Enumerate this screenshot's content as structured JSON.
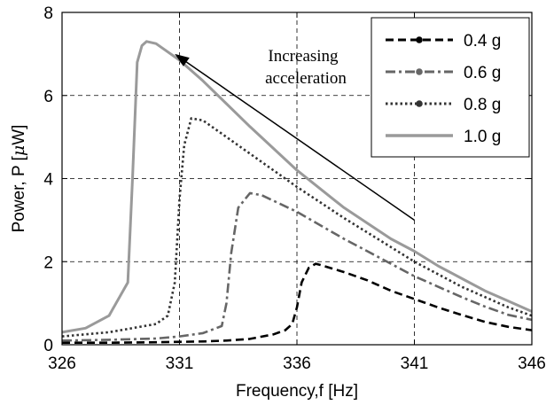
{
  "chart_data": {
    "type": "line",
    "title": "",
    "xlabel": "Frequency,f [Hz]",
    "ylabel_parts": [
      "Power, P [",
      "μ",
      "W]"
    ],
    "xlim": [
      326,
      346
    ],
    "ylim": [
      0,
      8
    ],
    "xticks": [
      326,
      331,
      336,
      341,
      346
    ],
    "yticks": [
      0,
      2,
      4,
      6,
      8
    ],
    "grid": true,
    "legend": "top-right",
    "annotation": {
      "lines": [
        "Increasing",
        "acceleration"
      ],
      "arrow_from": [
        341.0,
        3.0
      ],
      "arrow_to": [
        330.8,
        7.0
      ]
    },
    "series": [
      {
        "name": "0.4 g",
        "color": "#000000",
        "style": "dashed",
        "x": [
          326,
          328,
          330,
          332,
          333,
          334,
          335,
          335.5,
          335.8,
          336.0,
          336.2,
          336.5,
          336.8,
          337,
          338,
          339,
          340,
          341,
          342,
          343,
          344,
          345,
          346
        ],
        "y": [
          0.05,
          0.05,
          0.06,
          0.08,
          0.1,
          0.14,
          0.25,
          0.35,
          0.5,
          0.9,
          1.5,
          1.85,
          1.95,
          1.92,
          1.75,
          1.55,
          1.3,
          1.1,
          0.9,
          0.72,
          0.55,
          0.43,
          0.35
        ]
      },
      {
        "name": "0.6 g",
        "color": "#666666",
        "style": "dashdot",
        "x": [
          326,
          328,
          330,
          331,
          332,
          332.8,
          333.0,
          333.2,
          333.5,
          334,
          334.5,
          336,
          338,
          339,
          340,
          341,
          342,
          343,
          344,
          345,
          346
        ],
        "y": [
          0.1,
          0.12,
          0.15,
          0.2,
          0.28,
          0.45,
          1.0,
          2.2,
          3.3,
          3.65,
          3.6,
          3.2,
          2.55,
          2.25,
          1.95,
          1.65,
          1.4,
          1.15,
          0.92,
          0.72,
          0.6
        ]
      },
      {
        "name": "0.8 g",
        "color": "#333333",
        "style": "dotted",
        "x": [
          326,
          328,
          330,
          330.5,
          330.8,
          331.0,
          331.2,
          331.5,
          332,
          333,
          334,
          336,
          338,
          340,
          341,
          342,
          343,
          344,
          345,
          346
        ],
        "y": [
          0.2,
          0.3,
          0.5,
          0.7,
          1.5,
          3.5,
          4.8,
          5.45,
          5.4,
          5.0,
          4.6,
          3.8,
          3.05,
          2.35,
          2.0,
          1.7,
          1.4,
          1.15,
          0.9,
          0.7
        ]
      },
      {
        "name": "1.0 g",
        "color": "#9a9a9a",
        "style": "solid",
        "x": [
          326,
          327,
          328,
          328.8,
          329.0,
          329.2,
          329.4,
          329.6,
          330,
          331,
          332,
          334,
          336,
          338,
          340,
          341,
          342,
          343,
          344,
          345,
          346
        ],
        "y": [
          0.3,
          0.4,
          0.7,
          1.5,
          4.0,
          6.8,
          7.2,
          7.3,
          7.25,
          6.85,
          6.35,
          5.25,
          4.2,
          3.3,
          2.55,
          2.25,
          1.9,
          1.6,
          1.3,
          1.05,
          0.8
        ]
      }
    ]
  }
}
